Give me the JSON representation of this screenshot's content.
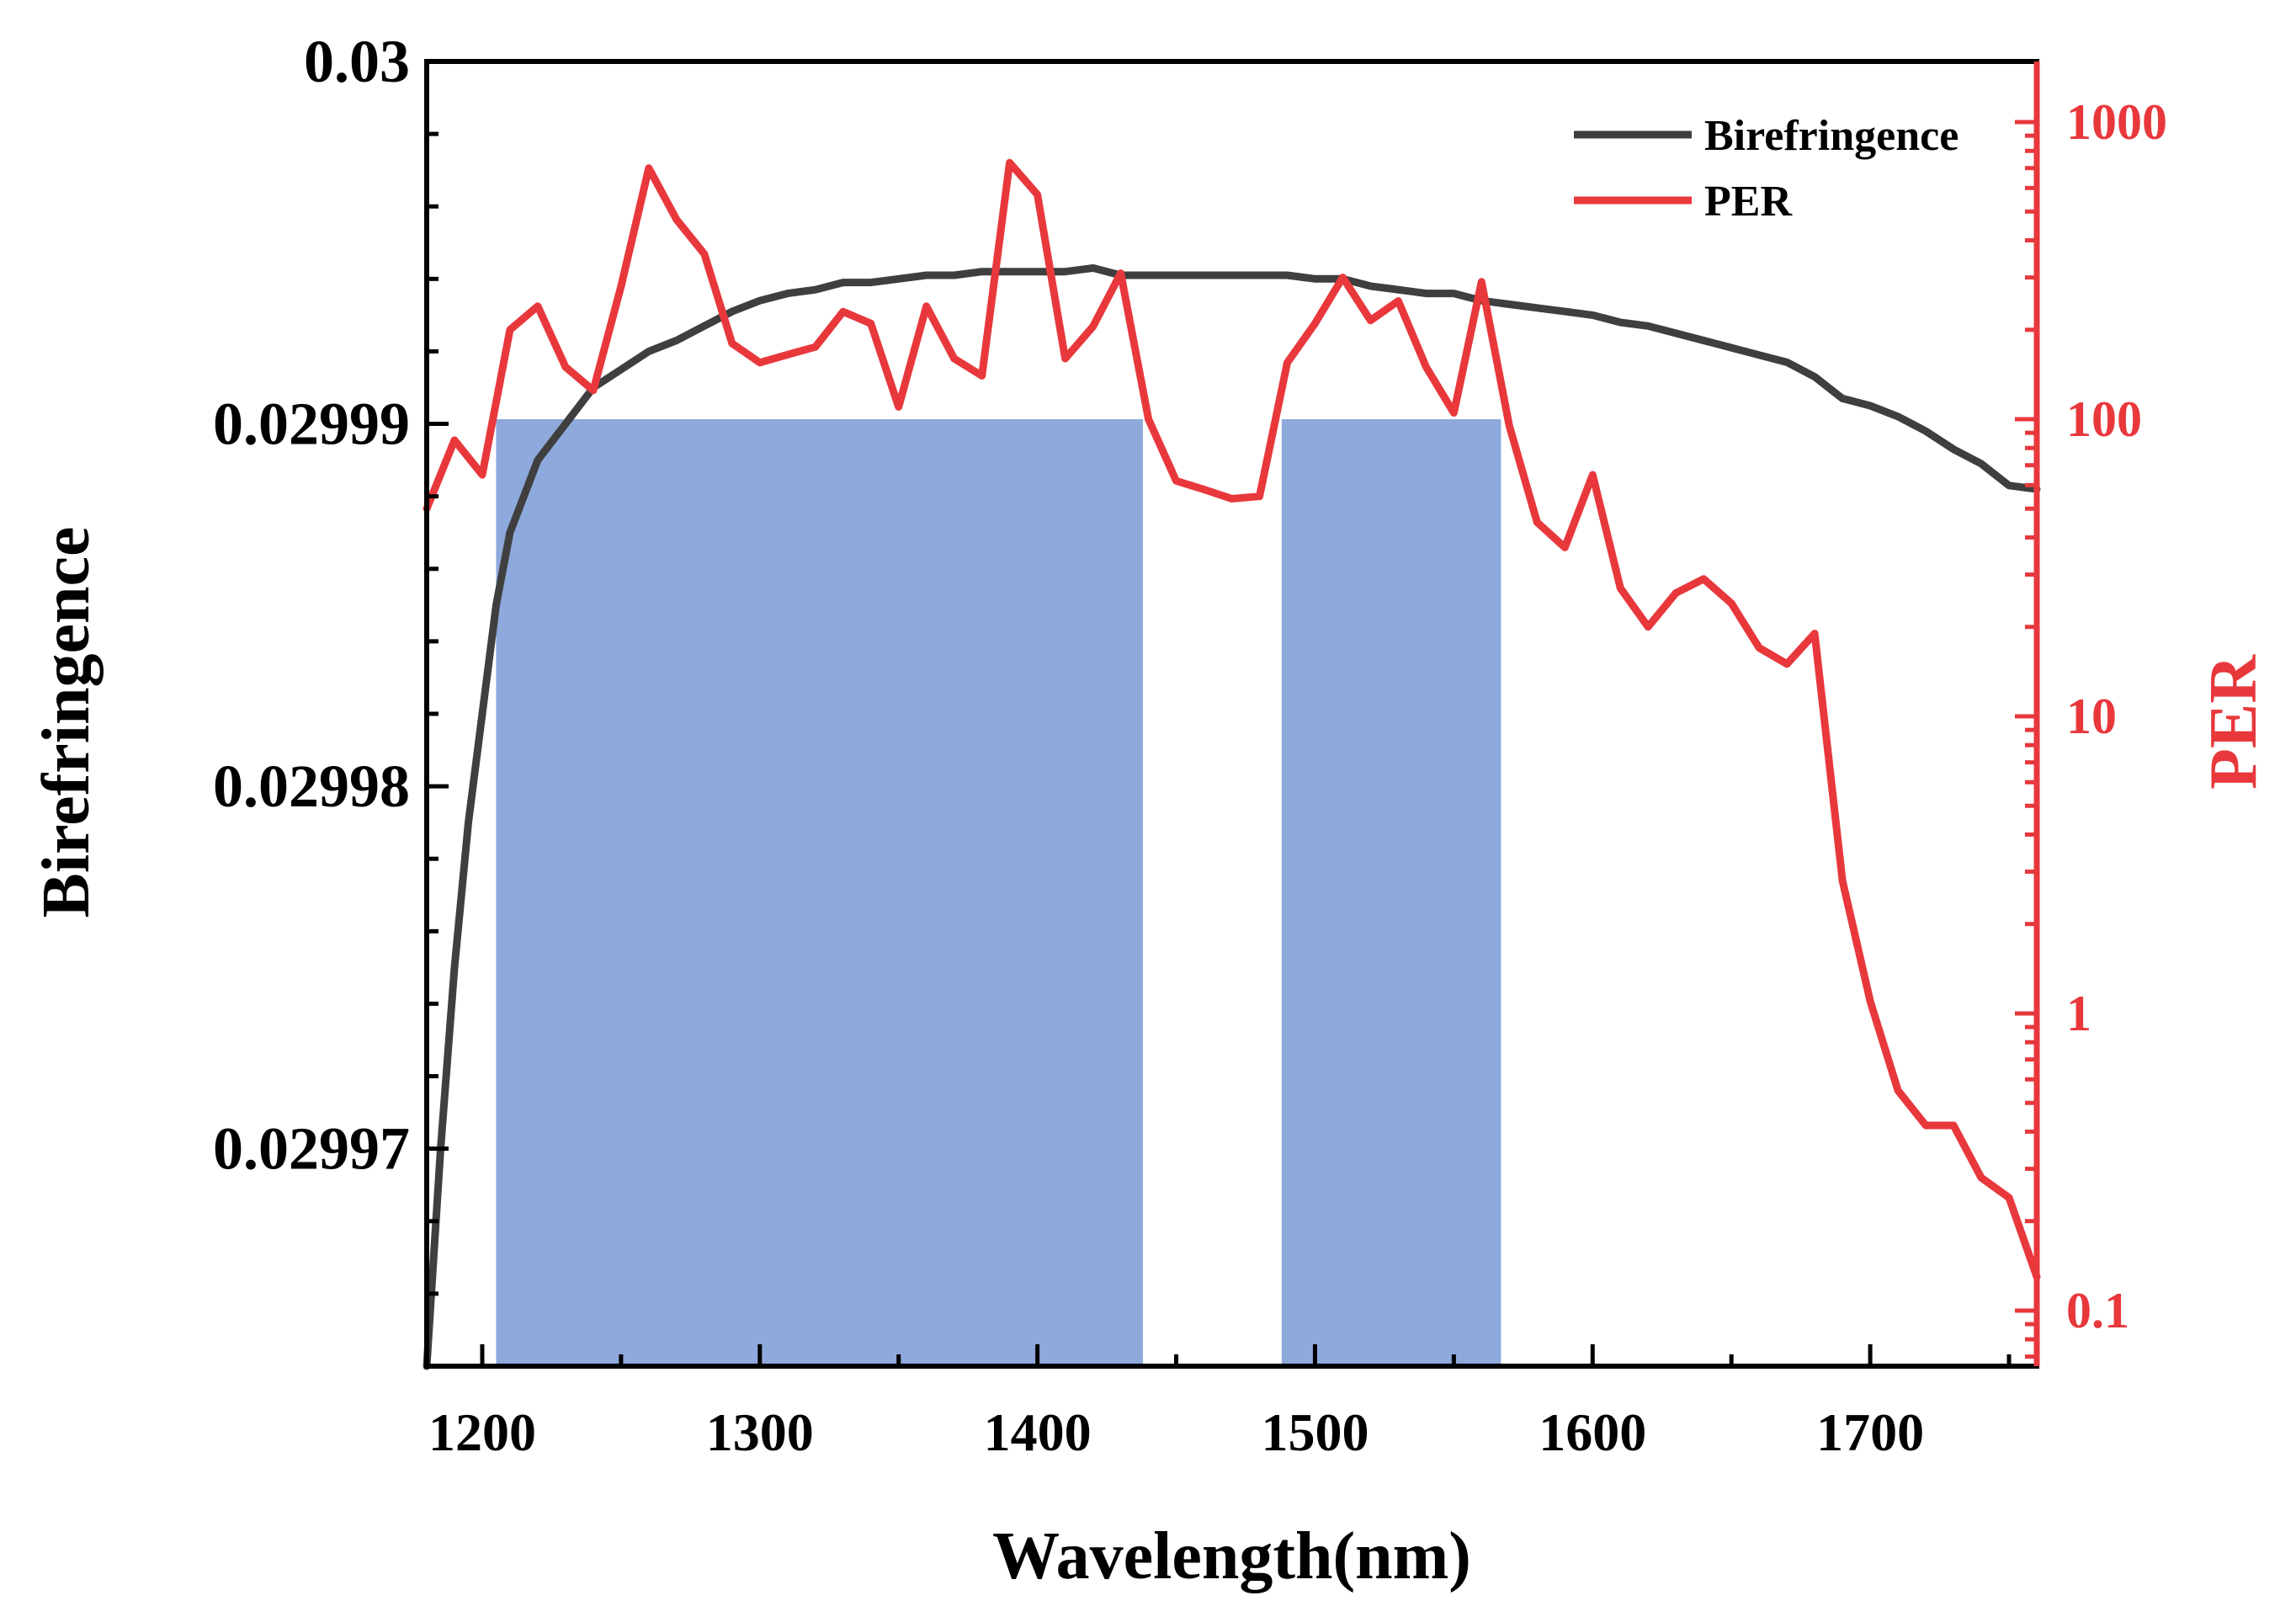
{
  "chart_data": {
    "type": "line",
    "x_axis": {
      "label": "Wavelength(nm)",
      "range": [
        1180,
        1760
      ],
      "ticks": [
        1200,
        1300,
        1400,
        1500,
        1600,
        1700
      ]
    },
    "y_left": {
      "label": "Birefringence",
      "range": [
        0.029964,
        0.03
      ],
      "ticks": [
        {
          "value": 0.02997,
          "label": "0.02997"
        },
        {
          "value": 0.02998,
          "label": "0.02998"
        },
        {
          "value": 0.02999,
          "label": "0.02999"
        },
        {
          "value": 0.03,
          "label": "0.03"
        }
      ]
    },
    "y_right": {
      "label": "PER",
      "scale": "log",
      "range": [
        0.065,
        1600
      ],
      "ticks": [
        {
          "value": 0.1,
          "label": "0.1"
        },
        {
          "value": 1,
          "label": "1"
        },
        {
          "value": 10,
          "label": "10"
        },
        {
          "value": 100,
          "label": "100"
        },
        {
          "value": 1000,
          "label": "1000"
        }
      ]
    },
    "shaded_regions": [
      {
        "x_start": 1205,
        "x_end": 1438,
        "top_per": 100,
        "color": "#8EA9DB"
      },
      {
        "x_start": 1488,
        "x_end": 1567,
        "top_per": 100,
        "color": "#8EA9DB"
      }
    ],
    "legend": {
      "position": "top-right",
      "entries": [
        {
          "name": "Birefringence",
          "color": "#3F3F3F"
        },
        {
          "name": "PER",
          "color": "#E8383C"
        }
      ]
    },
    "series": [
      {
        "name": "Birefringence",
        "axis": "left",
        "color": "#3F3F3F",
        "x": [
          1180,
          1185,
          1190,
          1195,
          1200,
          1205,
          1210,
          1220,
          1230,
          1240,
          1250,
          1260,
          1270,
          1280,
          1290,
          1300,
          1310,
          1320,
          1330,
          1340,
          1350,
          1360,
          1370,
          1380,
          1390,
          1400,
          1410,
          1420,
          1430,
          1440,
          1450,
          1460,
          1470,
          1480,
          1490,
          1500,
          1510,
          1520,
          1530,
          1540,
          1550,
          1560,
          1570,
          1580,
          1590,
          1600,
          1610,
          1620,
          1630,
          1640,
          1650,
          1660,
          1670,
          1680,
          1690,
          1700,
          1710,
          1720,
          1730,
          1740,
          1750,
          1760
        ],
        "values": [
          0.029964,
          0.02997,
          0.029975,
          0.029979,
          0.029982,
          0.029985,
          0.029987,
          0.029989,
          0.02999,
          0.029991,
          0.0299915,
          0.029992,
          0.0299923,
          0.0299927,
          0.0299931,
          0.0299934,
          0.0299936,
          0.0299937,
          0.0299939,
          0.0299939,
          0.029994,
          0.0299941,
          0.0299941,
          0.0299942,
          0.0299942,
          0.0299942,
          0.0299942,
          0.0299943,
          0.0299941,
          0.0299941,
          0.0299941,
          0.0299941,
          0.0299941,
          0.0299941,
          0.0299941,
          0.029994,
          0.029994,
          0.0299938,
          0.0299937,
          0.0299936,
          0.0299936,
          0.0299934,
          0.0299933,
          0.0299932,
          0.0299931,
          0.029993,
          0.0299928,
          0.0299927,
          0.0299925,
          0.0299923,
          0.0299921,
          0.0299919,
          0.0299917,
          0.0299913,
          0.0299907,
          0.0299905,
          0.0299902,
          0.0299898,
          0.0299893,
          0.0299889,
          0.0299883,
          0.0299882
        ]
      },
      {
        "name": "PER",
        "axis": "right",
        "color": "#E8383C",
        "x": [
          1180,
          1190,
          1200,
          1210,
          1220,
          1230,
          1240,
          1250,
          1260,
          1270,
          1280,
          1290,
          1300,
          1310,
          1320,
          1330,
          1340,
          1350,
          1360,
          1370,
          1380,
          1390,
          1400,
          1410,
          1420,
          1430,
          1440,
          1450,
          1460,
          1470,
          1480,
          1490,
          1500,
          1510,
          1520,
          1530,
          1540,
          1550,
          1560,
          1570,
          1580,
          1590,
          1600,
          1610,
          1620,
          1630,
          1640,
          1650,
          1660,
          1670,
          1680,
          1690,
          1700,
          1710,
          1720,
          1730,
          1740,
          1750,
          1760
        ],
        "values": [
          50,
          85,
          65,
          200,
          240,
          150,
          125,
          280,
          700,
          470,
          360,
          180,
          155,
          165,
          175,
          230,
          210,
          110,
          240,
          160,
          140,
          730,
          570,
          160,
          205,
          310,
          100,
          62,
          58,
          54,
          55,
          155,
          210,
          300,
          215,
          250,
          150,
          105,
          290,
          95,
          45,
          37,
          65,
          27,
          20,
          26,
          29,
          24,
          17,
          15,
          19,
          2.8,
          1.1,
          0.55,
          0.42,
          0.42,
          0.28,
          0.24,
          0.13
        ]
      }
    ]
  }
}
